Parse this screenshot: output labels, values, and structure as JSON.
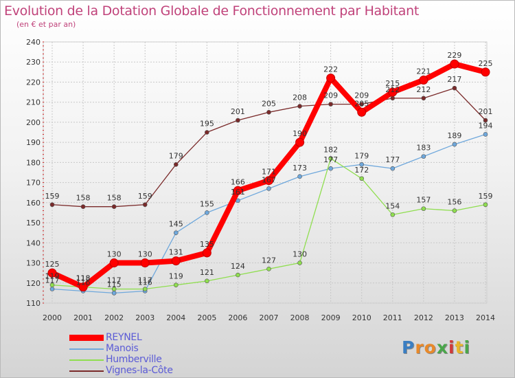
{
  "chart_data": {
    "type": "line",
    "title": "Evolution de la Dotation Globale de Fonctionnement par Habitant",
    "subtitle": "(en € et par an)",
    "xlabel": "",
    "ylabel": "",
    "categories": [
      "2000",
      "2001",
      "2002",
      "2003",
      "2004",
      "2005",
      "2006",
      "2007",
      "2008",
      "2009",
      "2010",
      "2011",
      "2012",
      "2013",
      "2014"
    ],
    "ylim": [
      110,
      240
    ],
    "yticks": [
      110,
      120,
      130,
      140,
      150,
      160,
      170,
      180,
      190,
      200,
      210,
      220,
      230,
      240
    ],
    "grid": true,
    "legend_position": "bottom-left",
    "series": [
      {
        "name": "REYNEL",
        "color": "#ff0000",
        "values": [
          125,
          118,
          130,
          130,
          131,
          135,
          166,
          171,
          190,
          222,
          205,
          215,
          221,
          229,
          225
        ],
        "labels": [
          "125",
          "118",
          "130",
          "130",
          "131",
          "135",
          "166",
          "171",
          "190",
          "222",
          "205",
          "215",
          "221",
          "229",
          "225"
        ]
      },
      {
        "name": "Manois",
        "color": "#6fa8dc",
        "values": [
          117,
          116,
          115,
          116,
          145,
          155,
          161,
          167,
          173,
          177,
          179,
          177,
          183,
          189,
          194
        ],
        "labels": [
          "117",
          "116",
          "115",
          "116",
          "145",
          "155",
          "161",
          "167",
          "173",
          "177",
          "179",
          "177",
          "183",
          "189",
          "194"
        ]
      },
      {
        "name": "Humberville",
        "color": "#8fde4f",
        "values": [
          119,
          118,
          117,
          117,
          119,
          121,
          124,
          127,
          130,
          182,
          172,
          154,
          157,
          156,
          159
        ],
        "labels": [
          "119",
          "118",
          "117",
          "117",
          "119",
          "121",
          "124",
          "127",
          "130",
          "182",
          "172",
          "154",
          "157",
          "156",
          "159"
        ]
      },
      {
        "name": "Vignes-la-Côte",
        "color": "#7a2a2a",
        "values": [
          159,
          158,
          158,
          159,
          179,
          195,
          201,
          205,
          208,
          209,
          209,
          212,
          212,
          217,
          201
        ],
        "labels": [
          "159",
          "158",
          "158",
          "159",
          "179",
          "195",
          "201",
          "205",
          "208",
          "209",
          "209",
          "212",
          "212",
          "217",
          "201"
        ]
      }
    ]
  },
  "logo": {
    "letters": [
      "P",
      "r",
      "o",
      "x",
      "i",
      "t",
      "i"
    ],
    "colors": [
      "#3a7ec2",
      "#e8892a",
      "#e8892a",
      "#4aa64a",
      "#d03a3a",
      "#e8b52a",
      "#4aa64a"
    ]
  }
}
